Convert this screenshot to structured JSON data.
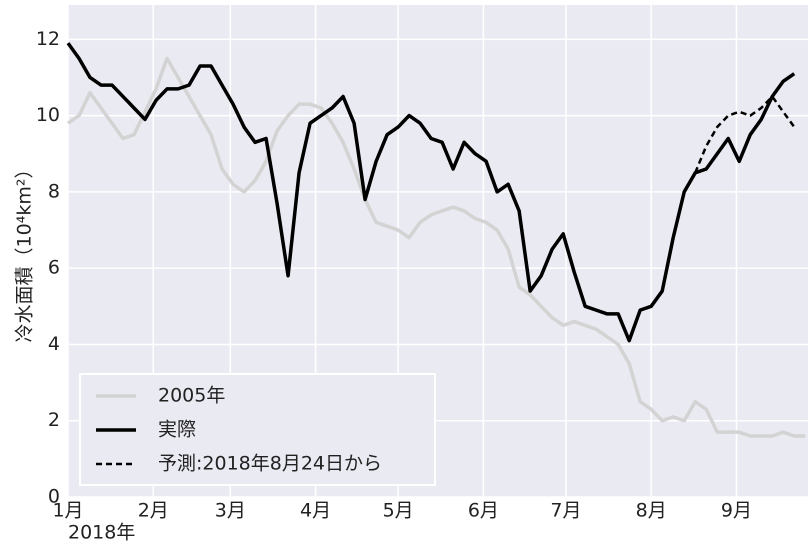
{
  "chart_data": {
    "type": "line",
    "ylabel": "冷水面積（10⁴km²）",
    "x_offset_label": "2018年",
    "x": [
      0,
      4,
      8,
      12,
      16,
      20,
      24,
      28,
      32,
      36,
      40,
      44,
      48,
      52,
      56,
      60,
      64,
      68,
      72,
      76,
      80,
      84,
      88,
      92,
      96,
      100,
      104,
      108,
      112,
      116,
      120,
      124,
      128,
      132,
      136,
      140,
      144,
      148,
      152,
      156,
      160,
      164,
      168,
      172,
      176,
      180,
      184,
      188,
      192,
      196,
      200,
      204,
      208,
      212,
      216,
      220,
      224,
      228,
      232,
      236,
      240,
      244,
      248,
      252,
      256,
      260,
      264,
      268
    ],
    "series": [
      {
        "name": "2005年",
        "color": "#d3d3d3",
        "width": 3.5,
        "dash": false,
        "values": [
          9.8,
          10.0,
          10.6,
          10.2,
          9.8,
          9.4,
          9.5,
          10.1,
          10.7,
          11.5,
          11.0,
          10.5,
          10.0,
          9.5,
          8.6,
          8.2,
          8.0,
          8.3,
          8.8,
          9.6,
          10.0,
          10.3,
          10.3,
          10.2,
          9.8,
          9.3,
          8.6,
          7.8,
          7.2,
          7.1,
          7.0,
          6.8,
          7.2,
          7.4,
          7.5,
          7.6,
          7.5,
          7.3,
          7.2,
          7.0,
          6.5,
          5.5,
          5.3,
          5.0,
          4.7,
          4.5,
          4.6,
          4.5,
          4.4,
          4.2,
          4.0,
          3.5,
          2.5,
          2.3,
          2.0,
          2.1,
          2.0,
          2.5,
          2.3,
          1.7,
          1.7,
          1.7,
          1.6,
          1.6,
          1.6,
          1.7,
          1.6,
          1.6
        ]
      },
      {
        "name": "実際",
        "color": "#000000",
        "width": 3.5,
        "dash": false,
        "values": [
          11.9,
          11.5,
          11.0,
          10.8,
          10.8,
          10.5,
          10.2,
          9.9,
          10.4,
          10.7,
          10.7,
          10.8,
          11.3,
          11.3,
          10.8,
          10.3,
          9.7,
          9.3,
          9.4,
          7.7,
          5.8,
          8.5,
          9.8,
          10.0,
          10.2,
          10.5,
          9.8,
          7.8,
          8.8,
          9.5,
          9.7,
          10.0,
          9.8,
          9.4,
          9.3,
          8.6,
          9.3,
          9.0,
          8.8,
          8.0,
          8.2,
          7.5,
          5.4,
          5.8,
          6.5,
          6.9,
          5.9,
          5.0,
          4.9,
          4.8,
          4.8,
          4.1,
          4.9,
          5.0,
          5.4,
          6.8,
          8.0,
          8.5,
          8.6,
          9.0,
          9.4,
          8.8,
          9.5,
          9.9,
          10.5,
          10.9,
          11.1,
          null
        ]
      },
      {
        "name": "予測:2018年8月24日から",
        "color": "#000000",
        "width": 2.5,
        "dash": true,
        "values": [
          null,
          null,
          null,
          null,
          null,
          null,
          null,
          null,
          null,
          null,
          null,
          null,
          null,
          null,
          null,
          null,
          null,
          null,
          null,
          null,
          null,
          null,
          null,
          null,
          null,
          null,
          null,
          null,
          null,
          null,
          null,
          null,
          null,
          null,
          null,
          null,
          null,
          null,
          null,
          null,
          null,
          null,
          null,
          null,
          null,
          null,
          null,
          null,
          null,
          null,
          null,
          null,
          null,
          null,
          null,
          null,
          null,
          8.5,
          9.2,
          9.7,
          10.0,
          10.1,
          10.0,
          10.2,
          10.5,
          10.1,
          9.7,
          null
        ]
      }
    ],
    "xlim": [
      0,
      269
    ],
    "xticks": [
      {
        "value": 0,
        "label": "1月"
      },
      {
        "value": 31,
        "label": "2月"
      },
      {
        "value": 59,
        "label": "3月"
      },
      {
        "value": 90,
        "label": "4月"
      },
      {
        "value": 120,
        "label": "5月"
      },
      {
        "value": 151,
        "label": "6月"
      },
      {
        "value": 181,
        "label": "7月"
      },
      {
        "value": 212,
        "label": "8月"
      },
      {
        "value": 243,
        "label": "9月"
      }
    ],
    "ylim": [
      0,
      12.9
    ],
    "yticks": [
      0,
      2,
      4,
      6,
      8,
      10,
      12
    ],
    "grid": true,
    "legend": "lower left"
  }
}
